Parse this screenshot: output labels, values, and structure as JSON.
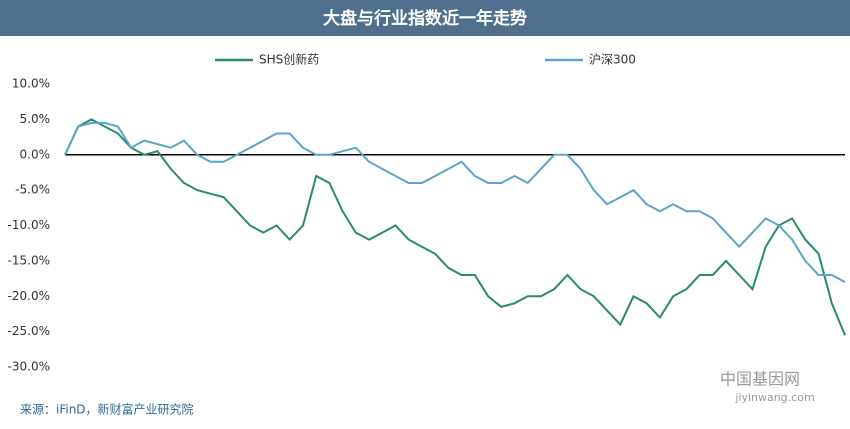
{
  "chart_data": {
    "type": "line",
    "title": "大盘与行业指数近一年走势",
    "categories": [
      null,
      null,
      null,
      null,
      null,
      null,
      null,
      null,
      null,
      null,
      null,
      null,
      null,
      null,
      null,
      null,
      null,
      null,
      null,
      null,
      null,
      null,
      null,
      null,
      null,
      null,
      null,
      null,
      null,
      null,
      null,
      null,
      null,
      null,
      null,
      null,
      null,
      null,
      null,
      null,
      null,
      null,
      null,
      null,
      null,
      null,
      null,
      null,
      null,
      null,
      null,
      null,
      null,
      null,
      null,
      null,
      null,
      null,
      null,
      null
    ],
    "series": [
      {
        "name": "SHS创新药",
        "color": "#2a8a6e",
        "values": [
          0,
          4,
          5,
          4,
          3,
          1,
          0,
          0.5,
          -2,
          -4,
          -5,
          -5.5,
          -6,
          -8,
          -10,
          -11,
          -10,
          -12,
          -10,
          -3,
          -4,
          -8,
          -11,
          -12,
          -11,
          -10,
          -12,
          -13,
          -14,
          -16,
          -17,
          -17,
          -20,
          -21.5,
          -21,
          -20,
          -20,
          -19,
          -17,
          -19,
          -20,
          -22,
          -24,
          -20,
          -21,
          -23,
          -20,
          -19,
          -17,
          -17,
          -15,
          -17,
          -19,
          -13,
          -10,
          -9,
          -12,
          -14,
          -21,
          -25.5
        ]
      },
      {
        "name": "沪深300",
        "color": "#5aa5c8",
        "values": [
          0,
          4,
          4.5,
          4.5,
          4,
          1,
          2,
          1.5,
          1,
          2,
          0,
          -1,
          -1,
          0,
          1,
          2,
          3,
          3,
          1,
          0,
          0,
          0.5,
          1,
          -1,
          -2,
          -3,
          -4,
          -4,
          -3,
          -2,
          -1,
          -3,
          -4,
          -4,
          -3,
          -4,
          -2,
          0,
          0,
          -2,
          -5,
          -7,
          -6,
          -5,
          -7,
          -8,
          -7,
          -8,
          -8,
          -9,
          -11,
          -13,
          -11,
          -9,
          -10,
          -12,
          -15,
          -17,
          -17,
          -18
        ]
      }
    ],
    "ylim": [
      -30,
      10
    ],
    "yticks": [
      {
        "value": 10,
        "label": "10.0%"
      },
      {
        "value": 5,
        "label": "5.0%"
      },
      {
        "value": 0,
        "label": "0.0%"
      },
      {
        "value": -5,
        "label": "-5.0%"
      },
      {
        "value": -10,
        "label": "-10.0%"
      },
      {
        "value": -15,
        "label": "-15.0%"
      },
      {
        "value": -20,
        "label": "-20.0%"
      },
      {
        "value": -25,
        "label": "-25.0%"
      },
      {
        "value": -30,
        "label": "-30.0%"
      }
    ],
    "grid": false,
    "source": "来源：iFinD，新财富产业研究院",
    "watermark": "中国基因网",
    "watermark_url": "jiyinwang.com"
  }
}
